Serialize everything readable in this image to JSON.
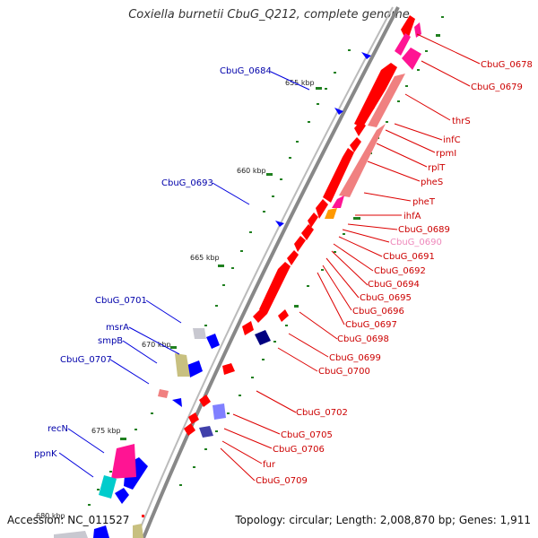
{
  "title": "Coxiella burnetii CbuG_Q212, complete genome",
  "accession": "Accession: NC_011527",
  "topology": "Topology: circular; Length: 2,008,870 bp; Genes: 1,911",
  "ticks": [
    "655 kbp",
    "660 kbp",
    "665 kbp",
    "670 kbp",
    "675 kbp",
    "680 kbp"
  ],
  "right_labels": [
    "CbuG_0678",
    "CbuG_0679",
    "thrS",
    "infC",
    "rpmI",
    "rplT",
    "pheS",
    "pheT",
    "ihfA",
    "CbuG_0689",
    "CbuG_0690",
    "CbuG_0691",
    "CbuG_0692",
    "CbuG_0694",
    "CbuG_0695",
    "CbuG_0696",
    "CbuG_0697",
    "CbuG_0698",
    "CbuG_0699",
    "CbuG_0700",
    "CbuG_0702",
    "CbuG_0705",
    "CbuG_0706",
    "fur",
    "CbuG_0709"
  ],
  "left_labels": [
    "CbuG_0684",
    "CbuG_0693",
    "CbuG_0701",
    "msrA",
    "smpB",
    "CbuG_0707",
    "recN",
    "ppnK"
  ],
  "colors": {
    "backbone": "#888888",
    "forward_gene": "#ff0000",
    "reverse_gene": "#0000ff",
    "rrna_pink": "#f08080",
    "magenta": "#ff1493",
    "cyan": "#00cccc",
    "khaki": "#c8c080",
    "lavender": "#8080ff",
    "navy": "#000080",
    "orange": "#ff9900",
    "gc_dots": "#208020",
    "right_label": "#cc0000",
    "left_label": "#0000aa"
  }
}
